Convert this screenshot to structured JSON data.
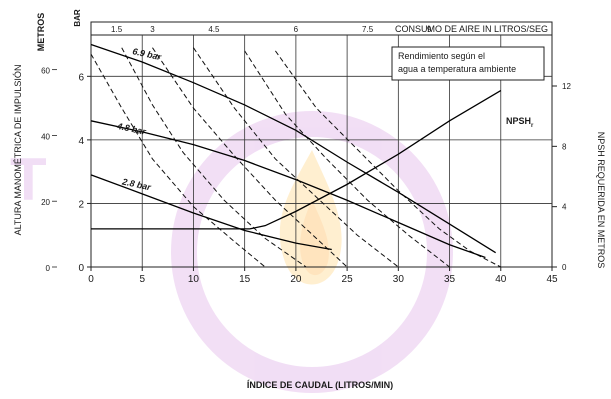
{
  "chart_data": {
    "type": "line",
    "xlabel": "ÍNDICE DE CAUDAL (LITROS/MIN)",
    "x_ticks": [
      "0",
      "5",
      "10",
      "15",
      "20",
      "25",
      "30",
      "35",
      "40",
      "45"
    ],
    "xlim": [
      0,
      45
    ],
    "left_units": "METROS",
    "left_ticks": [
      "0",
      "2",
      "4",
      "6"
    ],
    "inner_units": "BAR",
    "inner_ticks": [
      "0",
      "20",
      "40",
      "60"
    ],
    "ylabel": "ALTURA MANOMÉTRICA DE IMPULSIÓN",
    "right_label": "NPSH REQUERIDA EN METROS",
    "right_ticks": [
      "0",
      "4",
      "8",
      "12"
    ],
    "top_title": "CONSUMO DE AIRE IN LITROS/SEG",
    "top_ticks": [
      "1.5",
      "3",
      "4.5",
      "6",
      "7.5",
      "9"
    ],
    "note": [
      "Rendimiento según el",
      "agua a temperatura ambiente"
    ],
    "series": [
      {
        "name": "6.9 bar",
        "x": [
          0,
          5,
          10,
          15,
          20,
          25,
          30,
          35,
          39.5
        ],
        "y": [
          7.0,
          6.45,
          5.8,
          5.1,
          4.3,
          3.3,
          2.35,
          1.35,
          0.45
        ]
      },
      {
        "name": "4.8 bar",
        "x": [
          0,
          5,
          10,
          15,
          20,
          25,
          30,
          35,
          38.5
        ],
        "y": [
          4.6,
          4.25,
          3.85,
          3.35,
          2.75,
          2.1,
          1.4,
          0.7,
          0.3
        ]
      },
      {
        "name": "2.8 bar",
        "x": [
          0,
          5,
          10,
          15,
          20,
          23.5
        ],
        "y": [
          2.9,
          2.3,
          1.7,
          1.15,
          0.75,
          0.55
        ]
      },
      {
        "name": "NPSHr",
        "x": [
          0,
          15.5,
          17,
          20,
          25,
          30,
          35,
          40
        ],
        "y": [
          1.2,
          1.2,
          1.3,
          1.75,
          2.6,
          3.55,
          4.6,
          5.55
        ]
      }
    ],
    "air_curves": [
      {
        "label": "1.5",
        "x": [
          0,
          3,
          6,
          10,
          14,
          17
        ],
        "y": [
          6.7,
          5.0,
          3.4,
          1.9,
          0.8,
          0
        ]
      },
      {
        "label": "3",
        "x": [
          3,
          6,
          9,
          13,
          17,
          21
        ],
        "y": [
          6.9,
          5.1,
          3.6,
          2.1,
          0.9,
          0
        ]
      },
      {
        "label": "4.5",
        "x": [
          6,
          10,
          14,
          18,
          22,
          25
        ],
        "y": [
          6.9,
          5.0,
          3.5,
          2.1,
          0.9,
          0
        ]
      },
      {
        "label": "6",
        "x": [
          10,
          14,
          18,
          22,
          26,
          30
        ],
        "y": [
          6.9,
          5.0,
          3.4,
          2.2,
          1.0,
          0
        ]
      },
      {
        "label": "7.5",
        "x": [
          15,
          19,
          23,
          27,
          31,
          35
        ],
        "y": [
          6.8,
          4.8,
          3.4,
          2.1,
          1.0,
          0
        ]
      },
      {
        "label": "9",
        "x": [
          18,
          22,
          26,
          30,
          34,
          37,
          40
        ],
        "y": [
          6.8,
          5.0,
          3.7,
          2.4,
          1.2,
          0.5,
          0
        ]
      }
    ],
    "ylim_m": [
      0,
      7.3
    ],
    "npsh_label": "NPSH",
    "npsh_sub": "r"
  }
}
